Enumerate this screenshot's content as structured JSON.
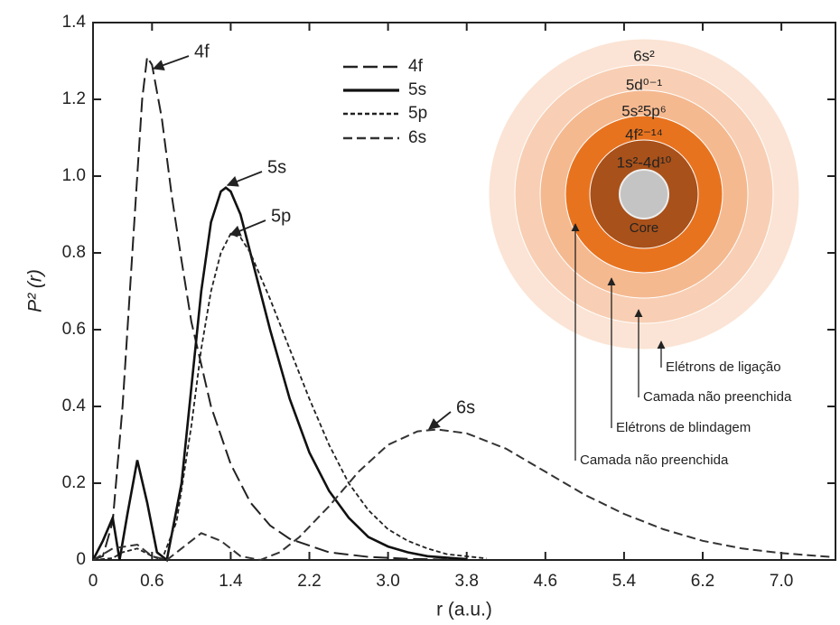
{
  "chart_data": {
    "type": "line",
    "y_label": "P² (r)",
    "x_label": "r (a.u.)",
    "xlim": [
      0,
      7.55
    ],
    "ylim": [
      0,
      1.4
    ],
    "xticks": [
      0,
      0.6,
      1.4,
      2.2,
      {
        "value": 3,
        "label": "3.0"
      },
      3.8,
      4.6,
      5.4,
      6.2,
      {
        "value": 7,
        "label": "7.0"
      }
    ],
    "yticks": [
      0,
      0.2,
      0.4,
      0.6,
      0.8,
      {
        "value": 1,
        "label": "1.0"
      },
      1.2,
      1.4
    ],
    "legend": "top",
    "series": [
      {
        "name": "4f",
        "color": "#222222",
        "x": [
          0,
          0.1,
          0.2,
          0.3,
          0.4,
          0.5,
          0.55,
          0.6,
          0.7,
          0.8,
          0.9,
          1.0,
          1.2,
          1.4,
          1.6,
          1.8,
          2.0,
          2.4,
          2.8,
          3.2,
          3.6
        ],
        "values": [
          0,
          0.01,
          0.1,
          0.4,
          0.8,
          1.2,
          1.31,
          1.29,
          1.15,
          0.95,
          0.78,
          0.62,
          0.4,
          0.25,
          0.15,
          0.09,
          0.055,
          0.02,
          0.008,
          0.003,
          0.001
        ]
      },
      {
        "name": "5s",
        "color": "#111111",
        "x": [
          0,
          0.1,
          0.2,
          0.27,
          0.35,
          0.45,
          0.55,
          0.65,
          0.75,
          0.9,
          1.0,
          1.1,
          1.2,
          1.3,
          1.35,
          1.4,
          1.5,
          1.6,
          1.8,
          2.0,
          2.2,
          2.4,
          2.6,
          2.8,
          3.0,
          3.2,
          3.4,
          3.8
        ],
        "values": [
          0,
          0.05,
          0.11,
          0,
          0.12,
          0.26,
          0.15,
          0.02,
          0,
          0.2,
          0.45,
          0.7,
          0.88,
          0.96,
          0.97,
          0.96,
          0.9,
          0.8,
          0.6,
          0.42,
          0.28,
          0.18,
          0.11,
          0.06,
          0.035,
          0.02,
          0.01,
          0.002
        ]
      },
      {
        "name": "5p",
        "color": "#222222",
        "x": [
          0,
          0.2,
          0.3,
          0.45,
          0.6,
          0.7,
          0.85,
          1.0,
          1.1,
          1.2,
          1.3,
          1.4,
          1.5,
          1.6,
          1.8,
          2.0,
          2.2,
          2.4,
          2.6,
          2.8,
          3.0,
          3.2,
          3.4,
          3.6,
          4.0
        ],
        "values": [
          0,
          0.005,
          0.02,
          0.03,
          0.01,
          0,
          0.1,
          0.35,
          0.55,
          0.7,
          0.8,
          0.85,
          0.84,
          0.8,
          0.68,
          0.55,
          0.42,
          0.3,
          0.2,
          0.13,
          0.08,
          0.05,
          0.03,
          0.015,
          0.004
        ]
      },
      {
        "name": "6s",
        "color": "#333333",
        "x": [
          0,
          0.2,
          0.45,
          0.6,
          0.75,
          0.9,
          1.1,
          1.3,
          1.5,
          1.7,
          1.9,
          2.1,
          2.4,
          2.7,
          3.0,
          3.3,
          3.5,
          3.8,
          4.2,
          4.6,
          5.0,
          5.4,
          5.8,
          6.2,
          6.6,
          7.0,
          7.5
        ],
        "values": [
          0,
          0.03,
          0.04,
          0.01,
          0,
          0.03,
          0.07,
          0.05,
          0.01,
          0,
          0.02,
          0.06,
          0.14,
          0.23,
          0.3,
          0.335,
          0.34,
          0.33,
          0.29,
          0.23,
          0.17,
          0.12,
          0.08,
          0.05,
          0.03,
          0.018,
          0.008
        ]
      }
    ],
    "annotations": [
      "4f",
      "5s",
      "5p",
      "6s"
    ]
  },
  "diagram": {
    "rings": [
      "6s²",
      "5d⁰⁻¹",
      "5s²5p⁶",
      "4f²⁻¹⁴",
      "1s²-4d¹⁰",
      "Core"
    ],
    "labels": [
      "Elétrons de ligação",
      "Camada não preenchida",
      "Elétrons de blindagem",
      "Camada não preenchida"
    ]
  }
}
